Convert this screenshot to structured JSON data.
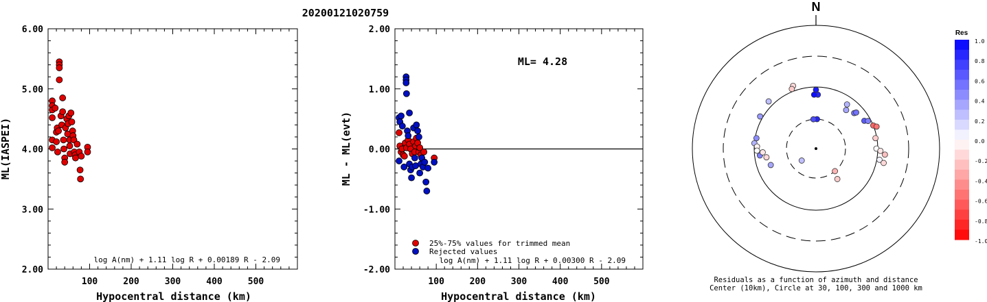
{
  "title": "20200121020759",
  "chart_data": [
    {
      "type": "scatter",
      "ylabel": "ML(IASPEI)",
      "xlabel": "Hypocentral distance (km)",
      "xlim": [
        0,
        600
      ],
      "ylim": [
        2.0,
        6.0
      ],
      "xticks": [
        "100",
        "200",
        "300",
        "400",
        "500"
      ],
      "yticks": [
        "2.00",
        "3.00",
        "4.00",
        "5.00",
        "6.00"
      ],
      "formula": "log A(nm) + 1.11 log R + 0.00189 R - 2.09",
      "series": [
        {
          "color": "#e00000",
          "points": [
            [
              10,
              4.8
            ],
            [
              10,
              4.72
            ],
            [
              10,
              4.65
            ],
            [
              10,
              4.52
            ],
            [
              10,
              4.15
            ],
            [
              10,
              4.02
            ],
            [
              17,
              4.68
            ],
            [
              20,
              4.28
            ],
            [
              20,
              4.12
            ],
            [
              22,
              4.35
            ],
            [
              25,
              4.3
            ],
            [
              23,
              3.95
            ],
            [
              27,
              5.45
            ],
            [
              27,
              5.4
            ],
            [
              27,
              5.35
            ],
            [
              27,
              5.15
            ],
            [
              31,
              4.55
            ],
            [
              33,
              4.4
            ],
            [
              35,
              4.62
            ],
            [
              35,
              4.85
            ],
            [
              37,
              4.15
            ],
            [
              38,
              4.0
            ],
            [
              40,
              3.85
            ],
            [
              40,
              3.78
            ],
            [
              42,
              4.35
            ],
            [
              45,
              4.5
            ],
            [
              47,
              4.25
            ],
            [
              48,
              4.42
            ],
            [
              50,
              4.55
            ],
            [
              52,
              4.15
            ],
            [
              52,
              4.05
            ],
            [
              53,
              3.92
            ],
            [
              55,
              4.6
            ],
            [
              57,
              4.45
            ],
            [
              59,
              4.3
            ],
            [
              60,
              4.22
            ],
            [
              62,
              4.15
            ],
            [
              63,
              3.95
            ],
            [
              65,
              3.9
            ],
            [
              66,
              3.85
            ],
            [
              70,
              4.08
            ],
            [
              75,
              3.95
            ],
            [
              77,
              3.65
            ],
            [
              78,
              3.5
            ],
            [
              80,
              3.88
            ],
            [
              95,
              4.03
            ],
            [
              95,
              3.95
            ]
          ]
        }
      ]
    },
    {
      "type": "scatter",
      "ylabel": "ML - ML(evt)",
      "xlabel": "Hypocentral distance (km)",
      "xlim": [
        0,
        600
      ],
      "ylim": [
        -2.0,
        2.0
      ],
      "xticks": [
        "100",
        "200",
        "300",
        "400",
        "500"
      ],
      "yticks": [
        "-2.00",
        "-1.00",
        "0.00",
        "1.00",
        "2.00"
      ],
      "annotation": "ML= 4.28",
      "formula": "log A(nm) + 1.11 log R + 0.00300 R - 2.09",
      "zero_line": 0.0,
      "legend": [
        {
          "label": "25%-75% values for trimmed mean",
          "color": "#e00000"
        },
        {
          "label": "Rejected values",
          "color": "#0010c0"
        }
      ],
      "series": [
        {
          "name": "25%-75% values for trimmed mean",
          "color": "#e00000",
          "points": [
            [
              10,
              0.27
            ],
            [
              12,
              0.05
            ],
            [
              15,
              -0.05
            ],
            [
              17,
              0.0
            ],
            [
              20,
              -0.1
            ],
            [
              23,
              -0.12
            ],
            [
              25,
              0.1
            ],
            [
              28,
              0.02
            ],
            [
              32,
              0.15
            ],
            [
              35,
              0.08
            ],
            [
              38,
              0.0
            ],
            [
              42,
              -0.08
            ],
            [
              45,
              0.12
            ],
            [
              48,
              -0.05
            ],
            [
              50,
              0.05
            ],
            [
              52,
              0.18
            ],
            [
              55,
              0.1
            ],
            [
              58,
              -0.05
            ],
            [
              60,
              0.02
            ],
            [
              63,
              -0.1
            ],
            [
              70,
              -0.05
            ],
            [
              95,
              -0.15
            ]
          ]
        },
        {
          "name": "Rejected values",
          "color": "#0010c0",
          "points": [
            [
              10,
              0.52
            ],
            [
              12,
              0.45
            ],
            [
              15,
              0.55
            ],
            [
              10,
              -0.2
            ],
            [
              18,
              0.38
            ],
            [
              22,
              -0.3
            ],
            [
              27,
              1.2
            ],
            [
              27,
              1.15
            ],
            [
              27,
              1.1
            ],
            [
              28,
              0.92
            ],
            [
              30,
              0.3
            ],
            [
              32,
              0.22
            ],
            [
              35,
              0.6
            ],
            [
              35,
              -0.25
            ],
            [
              38,
              -0.35
            ],
            [
              40,
              -0.48
            ],
            [
              42,
              -0.3
            ],
            [
              45,
              0.35
            ],
            [
              48,
              -0.15
            ],
            [
              50,
              -0.28
            ],
            [
              52,
              0.4
            ],
            [
              55,
              0.3
            ],
            [
              58,
              0.2
            ],
            [
              60,
              -0.4
            ],
            [
              63,
              -0.25
            ],
            [
              65,
              -0.15
            ],
            [
              68,
              -0.3
            ],
            [
              72,
              -0.22
            ],
            [
              75,
              -0.55
            ],
            [
              77,
              -0.7
            ],
            [
              80,
              -0.32
            ],
            [
              95,
              -0.22
            ]
          ]
        }
      ]
    },
    {
      "type": "polar_scatter",
      "north_label": "N",
      "caption_line1": "Residuals as a function of azimuth and distance",
      "caption_line2": "Center (10km), Circle at 30, 100, 300 and 1000 km",
      "rings": [
        {
          "label": "30",
          "style": "dashed"
        },
        {
          "label": "100",
          "style": "solid"
        },
        {
          "label": "300",
          "style": "dashed"
        },
        {
          "label": "1000",
          "style": "solid"
        }
      ],
      "points": [
        {
          "az": 340,
          "dist": 120,
          "res": -0.15
        },
        {
          "az": 338,
          "dist": 110,
          "res": -0.2
        },
        {
          "az": 315,
          "dist": 120,
          "res": 0.25
        },
        {
          "az": 300,
          "dist": 110,
          "res": 0.4
        },
        {
          "az": 280,
          "dist": 95,
          "res": 0.45
        },
        {
          "az": 275,
          "dist": 100,
          "res": 0.3
        },
        {
          "az": 272,
          "dist": 90,
          "res": -0.05
        },
        {
          "az": 268,
          "dist": 90,
          "res": 0.0
        },
        {
          "az": 263,
          "dist": 82,
          "res": 0.5
        },
        {
          "az": 266,
          "dist": 73,
          "res": -0.1
        },
        {
          "az": 260,
          "dist": 65,
          "res": -0.15
        },
        {
          "az": 0,
          "dist": 90,
          "res": 0.9
        },
        {
          "az": 2,
          "dist": 75,
          "res": 0.85
        },
        {
          "az": 358,
          "dist": 75,
          "res": 0.95
        },
        {
          "az": 2,
          "dist": 30,
          "res": 0.85
        },
        {
          "az": 355,
          "dist": 30,
          "res": 0.7
        },
        {
          "az": 35,
          "dist": 75,
          "res": 0.3
        },
        {
          "az": 38,
          "dist": 62,
          "res": 0.35
        },
        {
          "az": 47,
          "dist": 70,
          "res": 0.55
        },
        {
          "az": 48,
          "dist": 75,
          "res": 0.55
        },
        {
          "az": 60,
          "dist": 80,
          "res": 0.65
        },
        {
          "az": 62,
          "dist": 90,
          "res": 0.5
        },
        {
          "az": 68,
          "dist": 100,
          "res": -0.6
        },
        {
          "az": 70,
          "dist": 110,
          "res": -0.55
        },
        {
          "az": 80,
          "dist": 95,
          "res": -0.2
        },
        {
          "az": 90,
          "dist": 95,
          "res": 0.0
        },
        {
          "az": 92,
          "dist": 110,
          "res": -0.1
        },
        {
          "az": 95,
          "dist": 130,
          "res": -0.25
        },
        {
          "az": 100,
          "dist": 110,
          "res": 0.05
        },
        {
          "az": 102,
          "dist": 130,
          "res": -0.15
        },
        {
          "az": 140,
          "dist": 30,
          "res": -0.3
        },
        {
          "az": 145,
          "dist": 40,
          "res": -0.2
        },
        {
          "az": 250,
          "dist": 60,
          "res": 0.35
        },
        {
          "az": 230,
          "dist": 20,
          "res": 0.25
        }
      ],
      "colorbar": {
        "title": "Res",
        "ticks": [
          "1.0",
          "0.8",
          "0.6",
          "0.4",
          "0.2",
          "0.0",
          "-0.2",
          "-0.4",
          "-0.6",
          "-0.8",
          "-1.0"
        ],
        "pos_color": "#0000ff",
        "neg_color": "#ff0000"
      }
    }
  ]
}
